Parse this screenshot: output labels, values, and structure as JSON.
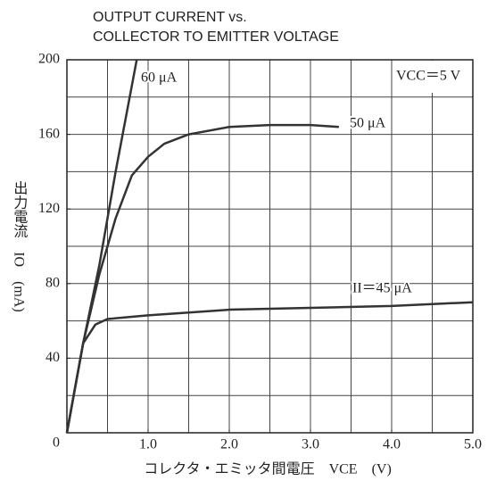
{
  "chart_data": {
    "type": "line",
    "title": [
      "OUTPUT CURRENT vs.",
      "COLLECTOR TO EMITTER VOLTAGE"
    ],
    "xlabel": "コレクタ・エミッタ間電圧　VCE　(V)",
    "ylabel": "出力電流　IO　(mA)",
    "annotation": "VCC＝5 V",
    "xlim": [
      0,
      5
    ],
    "ylim": [
      0,
      200
    ],
    "xticks": [
      {
        "value": 1,
        "label": "1.0"
      },
      {
        "value": 2,
        "label": "2.0"
      },
      {
        "value": 3,
        "label": "3.0"
      },
      {
        "value": 4,
        "label": "4.0"
      },
      {
        "value": 5,
        "label": "5.0"
      }
    ],
    "yticks": [
      0,
      40,
      80,
      120,
      160,
      200
    ],
    "xgrid": [
      0.5,
      1,
      1.5,
      2,
      2.5,
      3,
      3.5,
      4,
      4.5
    ],
    "ygrid": [
      20,
      40,
      60,
      80,
      100,
      120,
      140,
      160,
      180
    ],
    "grid": true,
    "series": [
      {
        "name": "60 μA",
        "color": "#333333",
        "x": [
          0,
          0.2,
          0.4,
          0.6,
          0.86
        ],
        "values": [
          0,
          48,
          90,
          140,
          200
        ]
      },
      {
        "name": "50 μA",
        "color": "#333333",
        "x": [
          0,
          0.2,
          0.4,
          0.6,
          0.8,
          1.0,
          1.2,
          1.5,
          2.0,
          2.5,
          3.0,
          3.35
        ],
        "values": [
          0,
          48,
          85,
          115,
          138,
          148,
          155,
          160,
          164,
          165,
          165,
          164
        ]
      },
      {
        "name": "II＝45 μA",
        "color": "#333333",
        "x": [
          0,
          0.2,
          0.35,
          0.5,
          1.0,
          2.0,
          3.0,
          4.0,
          5.0
        ],
        "values": [
          0,
          48,
          58,
          61,
          63,
          66,
          67,
          68,
          70
        ]
      }
    ]
  }
}
